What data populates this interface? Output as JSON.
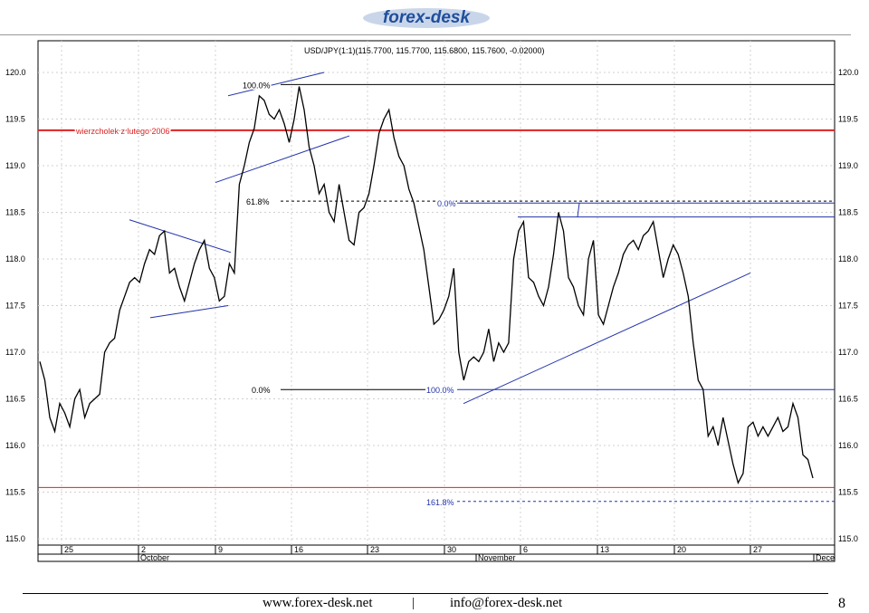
{
  "brand": {
    "logo_text": "forex-desk",
    "logo_color": "#1f4e9c"
  },
  "footer": {
    "website": "www.forex-desk.net",
    "separator": "|",
    "email": "info@forex-desk.net",
    "page_number": "8"
  },
  "chart_data": {
    "type": "line",
    "title": "USD/JPY(1:1)(115.7700, 115.7700, 115.6800, 115.7600, -0.02000)",
    "ylim": [
      115.0,
      120.0
    ],
    "y_ticks": [
      "115.0",
      "115.5",
      "116.0",
      "116.5",
      "117.0",
      "117.5",
      "118.0",
      "118.5",
      "119.0",
      "119.5",
      "120.0"
    ],
    "x_tick_labels": [
      "25",
      "2",
      "9",
      "16",
      "23",
      "30",
      "6",
      "13",
      "20",
      "27"
    ],
    "month_labels": [
      "October",
      "November",
      "Dece"
    ],
    "grid": true,
    "colors": {
      "price": "#000000",
      "trendline": "#2233aa",
      "support": "#dd2222"
    },
    "series": [
      {
        "values": [
          116.9,
          116.7,
          116.3,
          116.15,
          116.45,
          116.35,
          116.2,
          116.5,
          116.6,
          116.3,
          116.45,
          116.5,
          116.55,
          117.0,
          117.1,
          117.15,
          117.45,
          117.6,
          117.75,
          117.8,
          117.75,
          117.95,
          118.1,
          118.05,
          118.25,
          118.3,
          117.85,
          117.9,
          117.7,
          117.55,
          117.75,
          117.95,
          118.1,
          118.2,
          117.9,
          117.8,
          117.55,
          117.6,
          117.95,
          117.85,
          118.8,
          119.0,
          119.25,
          119.4,
          119.75,
          119.7,
          119.55,
          119.5,
          119.6,
          119.45,
          119.25,
          119.5,
          119.85,
          119.6,
          119.2,
          119.0,
          118.7,
          118.8,
          118.5,
          118.4,
          118.8,
          118.5,
          118.2,
          118.15,
          118.5,
          118.55,
          118.7,
          119.0,
          119.35,
          119.5,
          119.6,
          119.3,
          119.1,
          119.0,
          118.75,
          118.6,
          118.35,
          118.1,
          117.7,
          117.3,
          117.35,
          117.45,
          117.6,
          117.9,
          117.0,
          116.7,
          116.9,
          116.95,
          116.9,
          117.0,
          117.25,
          116.9,
          117.1,
          117.0,
          117.1,
          118.0,
          118.3,
          118.4,
          117.8,
          117.75,
          117.6,
          117.5,
          117.7,
          118.05,
          118.5,
          118.3,
          117.8,
          117.7,
          117.5,
          117.4,
          118.0,
          118.2,
          117.4,
          117.3,
          117.5,
          117.7,
          117.85,
          118.05,
          118.15,
          118.2,
          118.1,
          118.25,
          118.3,
          118.4,
          118.1,
          117.8,
          118.0,
          118.15,
          118.05,
          117.85,
          117.6,
          117.1,
          116.7,
          116.6,
          116.1,
          116.2,
          116.0,
          116.3,
          116.05,
          115.8,
          115.6,
          115.7,
          116.2,
          116.25,
          116.1,
          116.2,
          116.1,
          116.2,
          116.3,
          116.15,
          116.2,
          116.45,
          116.3,
          115.9,
          115.85,
          115.65
        ]
      }
    ],
    "annotations": [
      {
        "text": "wierzcholek z lutego 2006",
        "y": 119.38
      },
      {
        "text": "100.0%",
        "y": 119.87
      },
      {
        "text": "61.8%",
        "y": 118.62
      },
      {
        "text": "0.0%",
        "y": 116.6
      },
      {
        "text": "0.0%",
        "y": 118.6
      },
      {
        "text": "100.0%",
        "y": 116.6
      },
      {
        "text": "161.8%",
        "y": 115.4
      }
    ]
  }
}
